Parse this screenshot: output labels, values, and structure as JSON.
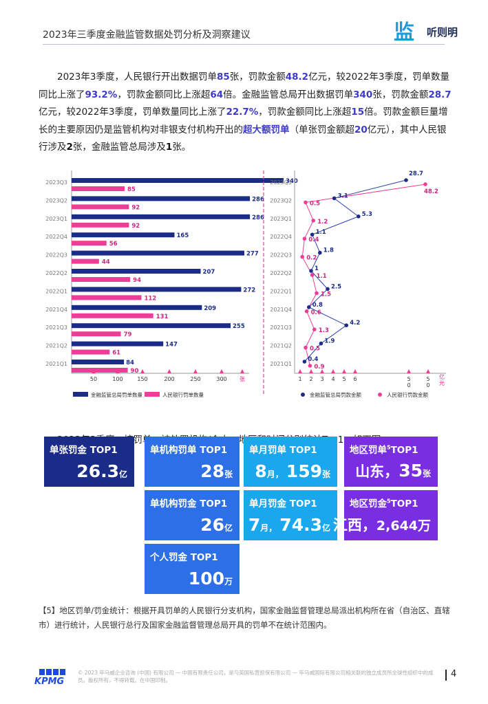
{
  "header": {
    "title": "2023年三季度金融监管数据处罚分析及洞察建议",
    "logo_mark": "监",
    "logo_text": "听则明"
  },
  "paragraph": [
    {
      "t": "2023年3季度，人民银行开出数据罚单"
    },
    {
      "t": "85",
      "h": "hl"
    },
    {
      "t": "张，罚款金额"
    },
    {
      "t": "48.2",
      "h": "hl"
    },
    {
      "t": "亿元，较2022年3季度，罚单数量同比上涨了"
    },
    {
      "t": "93.2%",
      "h": "hl"
    },
    {
      "t": "，罚款金额同比上涨超"
    },
    {
      "t": "64",
      "h": "hl"
    },
    {
      "t": "倍。金融监管总局开出数据罚单"
    },
    {
      "t": "340",
      "h": "hl"
    },
    {
      "t": "张，罚款金额"
    },
    {
      "t": "28.7",
      "h": "hl"
    },
    {
      "t": "亿元，较2022年3季度，罚单数量同比上涨了"
    },
    {
      "t": "22.7%",
      "h": "hl"
    },
    {
      "t": "，罚款金额同比上涨超"
    },
    {
      "t": "15",
      "h": "hl"
    },
    {
      "t": "倍。罚款金额巨量增长的主要原因仍是监管机构对非银支付机构开出的"
    },
    {
      "t": "超大额罚单",
      "h": "hl"
    },
    {
      "t": "（单张罚金额超"
    },
    {
      "t": "20",
      "h": "hl"
    },
    {
      "t": "亿元），其中人民银行涉及"
    },
    {
      "t": "2",
      "h": "blk"
    },
    {
      "t": "张，金融监管总局涉及"
    },
    {
      "t": "1",
      "h": "blk"
    },
    {
      "t": "张。"
    }
  ],
  "chart_data": [
    {
      "type": "bar",
      "categories": [
        "2023Q3",
        "2023Q2",
        "2023Q1",
        "2022Q4",
        "2022Q3",
        "2022Q2",
        "2022Q1",
        "2021Q4",
        "2021Q3",
        "2021Q2",
        "2021Q1"
      ],
      "series": [
        {
          "name": "金融监管总局罚单数量",
          "values": [
            340,
            286,
            286,
            165,
            277,
            207,
            272,
            209,
            255,
            147,
            84
          ]
        },
        {
          "name": "人民银行罚单数量",
          "values": [
            85,
            92,
            92,
            56,
            44,
            94,
            112,
            131,
            79,
            61,
            90
          ]
        }
      ],
      "xlabel": "张",
      "xticks": [
        50,
        100,
        150,
        200,
        250,
        300
      ],
      "legend_position": "bottom",
      "colors": {
        "navy": "#1a2b88",
        "pink": "#ee3d96"
      }
    },
    {
      "type": "line",
      "categories": [
        "2023Q3",
        "2023Q2",
        "2023Q1",
        "2022Q4",
        "2022Q3",
        "2022Q2",
        "2022Q1",
        "2021Q4",
        "2021Q3",
        "2021Q2",
        "2021Q1"
      ],
      "series": [
        {
          "name": "金融监管总局罚款金额",
          "values": [
            28.7,
            3.1,
            5.3,
            1.1,
            1.8,
            1.0,
            2.5,
            0.8,
            4.2,
            1.9,
            0.4
          ]
        },
        {
          "name": "人民银行罚款金额",
          "values": [
            48.2,
            0.5,
            1.2,
            0.4,
            0.2,
            1.1,
            1.5,
            0.6,
            1.3,
            0.5,
            0.9
          ]
        }
      ],
      "xlabel": "亿元",
      "xticks": [
        "1",
        "2",
        "3",
        "4",
        "5",
        "6",
        "5\n0",
        "5\n0"
      ],
      "legend_position": "bottom",
      "colors": {
        "navy": "#1a2b88",
        "pink": "#ee3d96"
      }
    }
  ],
  "subparagraph": "2023年3季度，按罚单、被处罚机构/个人、地区和时间分别统计Top1，如下图。",
  "cards": [
    {
      "id": "c1",
      "title": "单张罚金 TOP1",
      "num": "26.3",
      "unit": "亿",
      "color": "navy"
    },
    {
      "id": "c2",
      "title": "单机构罚单 TOP1",
      "num": "28",
      "unit": "张",
      "color": "blue"
    },
    {
      "id": "c3",
      "title": "单月罚单 TOP1",
      "pre": "8",
      "preunit": "月，",
      "num": "159",
      "unit": "张",
      "color": "cyan"
    },
    {
      "id": "c4",
      "title": "地区罚单",
      "sup": "5",
      "title2": "TOP1",
      "pre": "山东，",
      "num": "35",
      "unit": "张",
      "color": "purple"
    },
    {
      "id": "c5",
      "title": "单机构罚金 TOP1",
      "num": "26",
      "unit": "亿",
      "color": "blue"
    },
    {
      "id": "c6",
      "title": "单月罚金 TOP1",
      "pre": "7",
      "preunit": "月，",
      "num": "74.3",
      "unit": "亿",
      "color": "cyan"
    },
    {
      "id": "c7",
      "title": "地区罚金",
      "sup": "5",
      "title2": "TOP1",
      "pre": "江西，",
      "num": "2,644",
      "unit": "万",
      "color": "purple"
    },
    {
      "id": "c8",
      "title": "个人罚金 TOP1",
      "num": "100",
      "unit": "万",
      "color": "blue"
    }
  ],
  "footnote": "【5】地区罚单/罚金统计：根据开具罚单的人民银行分支机构，国家金融监督管理总局派出机构所在省（自治区、直辖市）进行统计，人民银行总行及国家金融监督管理总局开具的罚单不在统计范围内。",
  "footer": {
    "logo": "KPMG",
    "legal": "© 2023 毕马威企业咨询 (中国) 有限公司 — 中国有限责任公司，是与英国私营担保有限公司 — 毕马威国际有限公司相关联的独立成员所全球性组织中的成员。版权所有，不得转载。在中国印制。",
    "page": "4"
  }
}
